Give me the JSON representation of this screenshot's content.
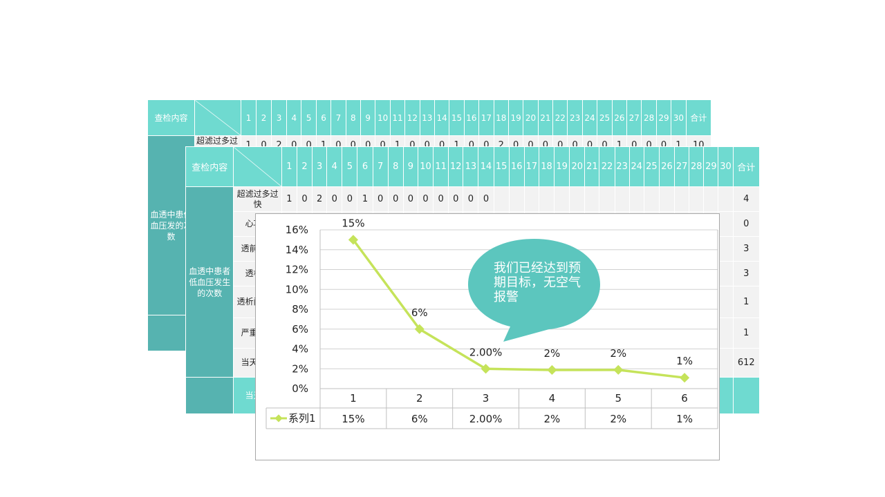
{
  "back_table": {
    "header_label": "查检内容",
    "days": [
      "1",
      "2",
      "3",
      "4",
      "5",
      "6",
      "7",
      "8",
      "9",
      "10",
      "11",
      "12",
      "13",
      "14",
      "15",
      "16",
      "17",
      "18",
      "19",
      "20",
      "21",
      "22",
      "23",
      "24",
      "25",
      "26",
      "27",
      "28",
      "29",
      "30"
    ],
    "total_label": "合计",
    "category": "血透中患低血压发的次数",
    "first_item": "超滤过多过",
    "first_row_values": [
      "1",
      "0",
      "2",
      "0",
      "0",
      "1",
      "0",
      "0",
      "0",
      "0",
      "1",
      "0",
      "0",
      "0",
      "1",
      "0",
      "0",
      "2",
      "0",
      "0",
      "0",
      "0",
      "0",
      "0",
      "0",
      "1",
      "0",
      "0",
      "0",
      "1"
    ],
    "first_row_total": "10"
  },
  "front_table": {
    "header_label": "查检内容",
    "days": [
      "1",
      "2",
      "3",
      "4",
      "5",
      "6",
      "7",
      "8",
      "9",
      "10",
      "11",
      "12",
      "13",
      "14",
      "15",
      "16",
      "17",
      "18",
      "19",
      "20",
      "21",
      "22",
      "23",
      "24",
      "25",
      "26",
      "27",
      "28",
      "29",
      "30"
    ],
    "total_label": "合计",
    "category": "血透中患者低血压发生的次数",
    "rows": [
      {
        "item": "超滤过多过快",
        "values": [
          "1",
          "0",
          "2",
          "0",
          "0",
          "1",
          "0",
          "0",
          "0",
          "0",
          "0",
          "0",
          "0",
          "0"
        ],
        "total": "4"
      },
      {
        "item": "心功能",
        "values": [],
        "total": "0"
      },
      {
        "item": "透前血压",
        "values": [],
        "total": "3"
      },
      {
        "item": "透析中",
        "values": [],
        "total": "3"
      },
      {
        "item": "透析间式过",
        "values": [],
        "total": "1"
      },
      {
        "item": "严重贫血",
        "values": [],
        "total": "1"
      },
      {
        "item": "当天透次",
        "values": [],
        "total": "612"
      }
    ],
    "footer_item": "当天签"
  },
  "chart_data": {
    "type": "line",
    "categories": [
      "1",
      "2",
      "3",
      "4",
      "5",
      "6"
    ],
    "series": [
      {
        "name": "系列1",
        "values": [
          0.15,
          0.06,
          0.02,
          0.0188,
          0.0189,
          0.011
        ],
        "labels": [
          "15%",
          "6%",
          "2.00%",
          "2%",
          "2%",
          "1%"
        ],
        "color": "#c5e35a"
      }
    ],
    "yticks": [
      "0%",
      "2%",
      "4%",
      "6%",
      "8%",
      "10%",
      "12%",
      "14%",
      "16%"
    ],
    "ylim": [
      0,
      0.16
    ],
    "grid": true,
    "legend": "data-table-bottom",
    "data_table": true
  },
  "callout": {
    "text": "我们已经达到预期目标，无空气报警",
    "color": "#5cc6be"
  },
  "colors": {
    "header_teal": "#6fdad0",
    "category_teal": "#56b3b0",
    "cell_gray": "#f2f2f2",
    "line_green": "#c5e35a"
  }
}
